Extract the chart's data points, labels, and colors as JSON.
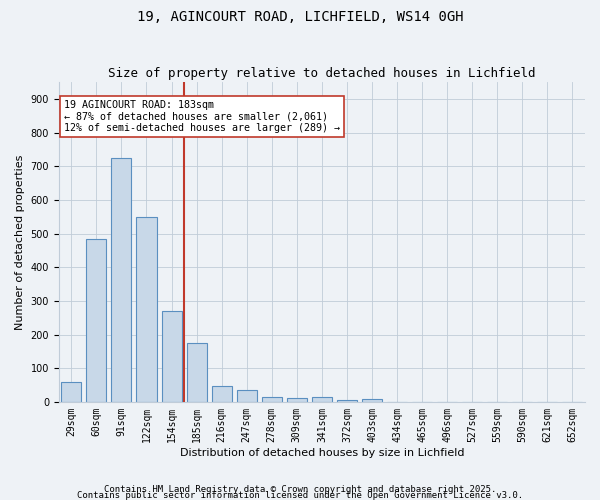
{
  "title1": "19, AGINCOURT ROAD, LICHFIELD, WS14 0GH",
  "title2": "Size of property relative to detached houses in Lichfield",
  "xlabel": "Distribution of detached houses by size in Lichfield",
  "ylabel": "Number of detached properties",
  "categories": [
    "29sqm",
    "60sqm",
    "91sqm",
    "122sqm",
    "154sqm",
    "185sqm",
    "216sqm",
    "247sqm",
    "278sqm",
    "309sqm",
    "341sqm",
    "372sqm",
    "403sqm",
    "434sqm",
    "465sqm",
    "496sqm",
    "527sqm",
    "559sqm",
    "590sqm",
    "621sqm",
    "652sqm"
  ],
  "values": [
    60,
    485,
    725,
    550,
    270,
    175,
    48,
    35,
    15,
    12,
    13,
    5,
    7,
    0,
    0,
    0,
    0,
    0,
    0,
    0,
    0
  ],
  "bar_color": "#c8d8e8",
  "bar_edge_color": "#5a8fc0",
  "highlight_index": 5,
  "highlight_line_color": "#c0392b",
  "annotation_line1": "19 AGINCOURT ROAD: 183sqm",
  "annotation_line2": "← 87% of detached houses are smaller (2,061)",
  "annotation_line3": "12% of semi-detached houses are larger (289) →",
  "annotation_box_color": "#ffffff",
  "annotation_box_edge": "#c0392b",
  "ylim": [
    0,
    950
  ],
  "yticks": [
    0,
    100,
    200,
    300,
    400,
    500,
    600,
    700,
    800,
    900
  ],
  "footnote1": "Contains HM Land Registry data © Crown copyright and database right 2025.",
  "footnote2": "Contains public sector information licensed under the Open Government Licence v3.0.",
  "bg_color": "#eef2f6",
  "plot_bg_color": "#eef2f6",
  "grid_color": "#c0ccd8",
  "title_fontsize": 10,
  "subtitle_fontsize": 9,
  "label_fontsize": 8,
  "tick_fontsize": 7,
  "footnote_fontsize": 6.5
}
